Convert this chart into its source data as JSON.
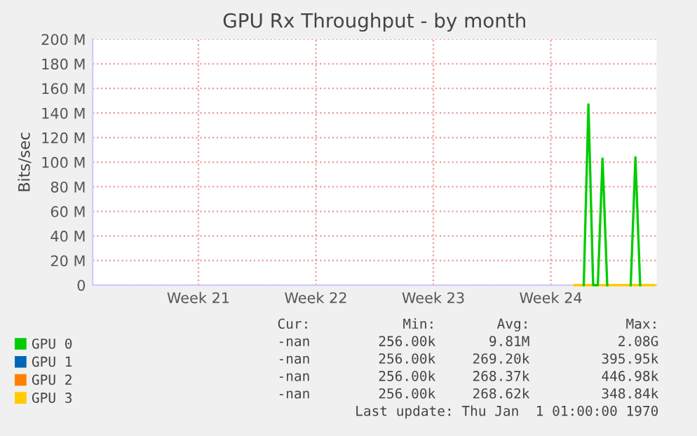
{
  "chart_data": {
    "type": "line",
    "title": "GPU Rx Throughput - by month",
    "ylabel": "Bits/sec",
    "categories": [
      null,
      null,
      null,
      null,
      null,
      null,
      null,
      null,
      null,
      null,
      null,
      null,
      null,
      null,
      null,
      null,
      null,
      null,
      null,
      null,
      null,
      null,
      "Week 21",
      null,
      null,
      null,
      null,
      null,
      null,
      null,
      null,
      null,
      null,
      null,
      null,
      null,
      null,
      null,
      null,
      null,
      null,
      null,
      null,
      null,
      null,
      null,
      null,
      "Week 22",
      null,
      null,
      null,
      null,
      null,
      null,
      null,
      null,
      null,
      null,
      null,
      null,
      null,
      null,
      null,
      null,
      null,
      null,
      null,
      null,
      null,
      null,
      null,
      null,
      "Week 23",
      null,
      null,
      null,
      null,
      null,
      null,
      null,
      null,
      null,
      null,
      null,
      null,
      null,
      null,
      null,
      null,
      null,
      null,
      null,
      null,
      null,
      null,
      null,
      null,
      "Week 24",
      null,
      null,
      null,
      null,
      null,
      null,
      null,
      null,
      null,
      null,
      null,
      null,
      null,
      null,
      null,
      null,
      null,
      null,
      null,
      null,
      null,
      null
    ],
    "ylim": [
      0,
      200000000
    ],
    "yticks": [
      0,
      {
        "value": 20000000,
        "label": "20 M"
      },
      {
        "value": 40000000,
        "label": "40 M"
      },
      {
        "value": 60000000,
        "label": "60 M"
      },
      {
        "value": 80000000,
        "label": "80 M"
      },
      {
        "value": 100000000,
        "label": "100 M"
      },
      {
        "value": 120000000,
        "label": "120 M"
      },
      {
        "value": 140000000,
        "label": "140 M"
      },
      {
        "value": 160000000,
        "label": "160 M"
      },
      {
        "value": 180000000,
        "label": "180 M"
      },
      {
        "value": 200000000,
        "label": "200 M"
      }
    ],
    "grid": true,
    "legend": "bottom",
    "marker": "none",
    "line_style": "solid",
    "series": [
      {
        "name": "GPU 0",
        "color": "#00cc00",
        "values": [
          null,
          null,
          null,
          null,
          null,
          null,
          null,
          null,
          null,
          null,
          null,
          null,
          null,
          null,
          null,
          null,
          null,
          null,
          null,
          null,
          null,
          null,
          null,
          null,
          null,
          null,
          null,
          null,
          null,
          null,
          null,
          null,
          null,
          null,
          null,
          null,
          null,
          null,
          null,
          null,
          null,
          null,
          null,
          null,
          null,
          null,
          null,
          null,
          null,
          null,
          null,
          null,
          null,
          null,
          null,
          null,
          null,
          null,
          null,
          null,
          null,
          null,
          null,
          null,
          null,
          null,
          null,
          null,
          null,
          null,
          null,
          null,
          null,
          null,
          null,
          null,
          null,
          null,
          null,
          null,
          null,
          null,
          null,
          null,
          null,
          null,
          null,
          null,
          null,
          null,
          null,
          null,
          null,
          null,
          null,
          null,
          null,
          null,
          null,
          null,
          null,
          null,
          null,
          null,
          0,
          147000000,
          0,
          0,
          103000000,
          0,
          null,
          null,
          null,
          null,
          0,
          104000000,
          0,
          null,
          null,
          null
        ]
      },
      {
        "name": "GPU 1",
        "color": "#0066b3",
        "values": [
          null,
          null,
          null,
          null,
          null,
          null,
          null,
          null,
          null,
          null,
          null,
          null,
          null,
          null,
          null,
          null,
          null,
          null,
          null,
          null,
          null,
          null,
          null,
          null,
          null,
          null,
          null,
          null,
          null,
          null,
          null,
          null,
          null,
          null,
          null,
          null,
          null,
          null,
          null,
          null,
          null,
          null,
          null,
          null,
          null,
          null,
          null,
          null,
          null,
          null,
          null,
          null,
          null,
          null,
          null,
          null,
          null,
          null,
          null,
          null,
          null,
          null,
          null,
          null,
          null,
          null,
          null,
          null,
          null,
          null,
          null,
          null,
          null,
          null,
          null,
          null,
          null,
          null,
          null,
          null,
          null,
          null,
          null,
          null,
          null,
          null,
          null,
          null,
          null,
          null,
          null,
          null,
          null,
          null,
          null,
          null,
          null,
          null,
          null,
          null,
          null,
          null,
          null,
          null,
          null,
          null,
          null,
          null,
          null,
          null,
          null,
          null,
          null,
          null,
          null,
          null,
          null,
          null,
          null,
          null
        ]
      },
      {
        "name": "GPU 2",
        "color": "#ff8000",
        "values": [
          null,
          null,
          null,
          null,
          null,
          null,
          null,
          null,
          null,
          null,
          null,
          null,
          null,
          null,
          null,
          null,
          null,
          null,
          null,
          null,
          null,
          null,
          null,
          null,
          null,
          null,
          null,
          null,
          null,
          null,
          null,
          null,
          null,
          null,
          null,
          null,
          null,
          null,
          null,
          null,
          null,
          null,
          null,
          null,
          null,
          null,
          null,
          null,
          null,
          null,
          null,
          null,
          null,
          null,
          null,
          null,
          null,
          null,
          null,
          null,
          null,
          null,
          null,
          null,
          null,
          null,
          null,
          null,
          null,
          null,
          null,
          null,
          null,
          null,
          null,
          null,
          null,
          null,
          null,
          null,
          null,
          null,
          null,
          null,
          null,
          null,
          null,
          null,
          null,
          null,
          null,
          null,
          null,
          null,
          null,
          null,
          null,
          null,
          null,
          null,
          null,
          null,
          null,
          null,
          null,
          null,
          null,
          null,
          null,
          null,
          null,
          null,
          null,
          null,
          null,
          null,
          null,
          null,
          null,
          null
        ]
      },
      {
        "name": "GPU 3",
        "color": "#ffcc00",
        "values": [
          null,
          null,
          null,
          null,
          null,
          null,
          null,
          null,
          null,
          null,
          null,
          null,
          null,
          null,
          null,
          null,
          null,
          null,
          null,
          null,
          null,
          null,
          null,
          null,
          null,
          null,
          null,
          null,
          null,
          null,
          null,
          null,
          null,
          null,
          null,
          null,
          null,
          null,
          null,
          null,
          null,
          null,
          null,
          null,
          null,
          null,
          null,
          null,
          null,
          null,
          null,
          null,
          null,
          null,
          null,
          null,
          null,
          null,
          null,
          null,
          null,
          null,
          null,
          null,
          null,
          null,
          null,
          null,
          null,
          null,
          null,
          null,
          null,
          null,
          null,
          null,
          null,
          null,
          null,
          null,
          null,
          null,
          null,
          null,
          null,
          null,
          null,
          null,
          null,
          null,
          null,
          null,
          null,
          null,
          null,
          null,
          null,
          null,
          null,
          null,
          null,
          null,
          0,
          0,
          0,
          0,
          0,
          0,
          0,
          0,
          0,
          0,
          0,
          0,
          0,
          0,
          0,
          0,
          0,
          0
        ]
      }
    ],
    "annotations": [
      "Cur:",
      "Min:",
      "Avg:",
      "Max:",
      "-nan",
      "256.00k",
      "9.81M",
      "2.08G",
      "-nan",
      "256.00k",
      "269.20k",
      "395.95k",
      "-nan",
      "256.00k",
      "268.37k",
      "446.98k",
      "-nan",
      "256.00k",
      "268.62k",
      "348.84k",
      "Last update: Thu Jan  1 01:00:00 1970"
    ]
  }
}
